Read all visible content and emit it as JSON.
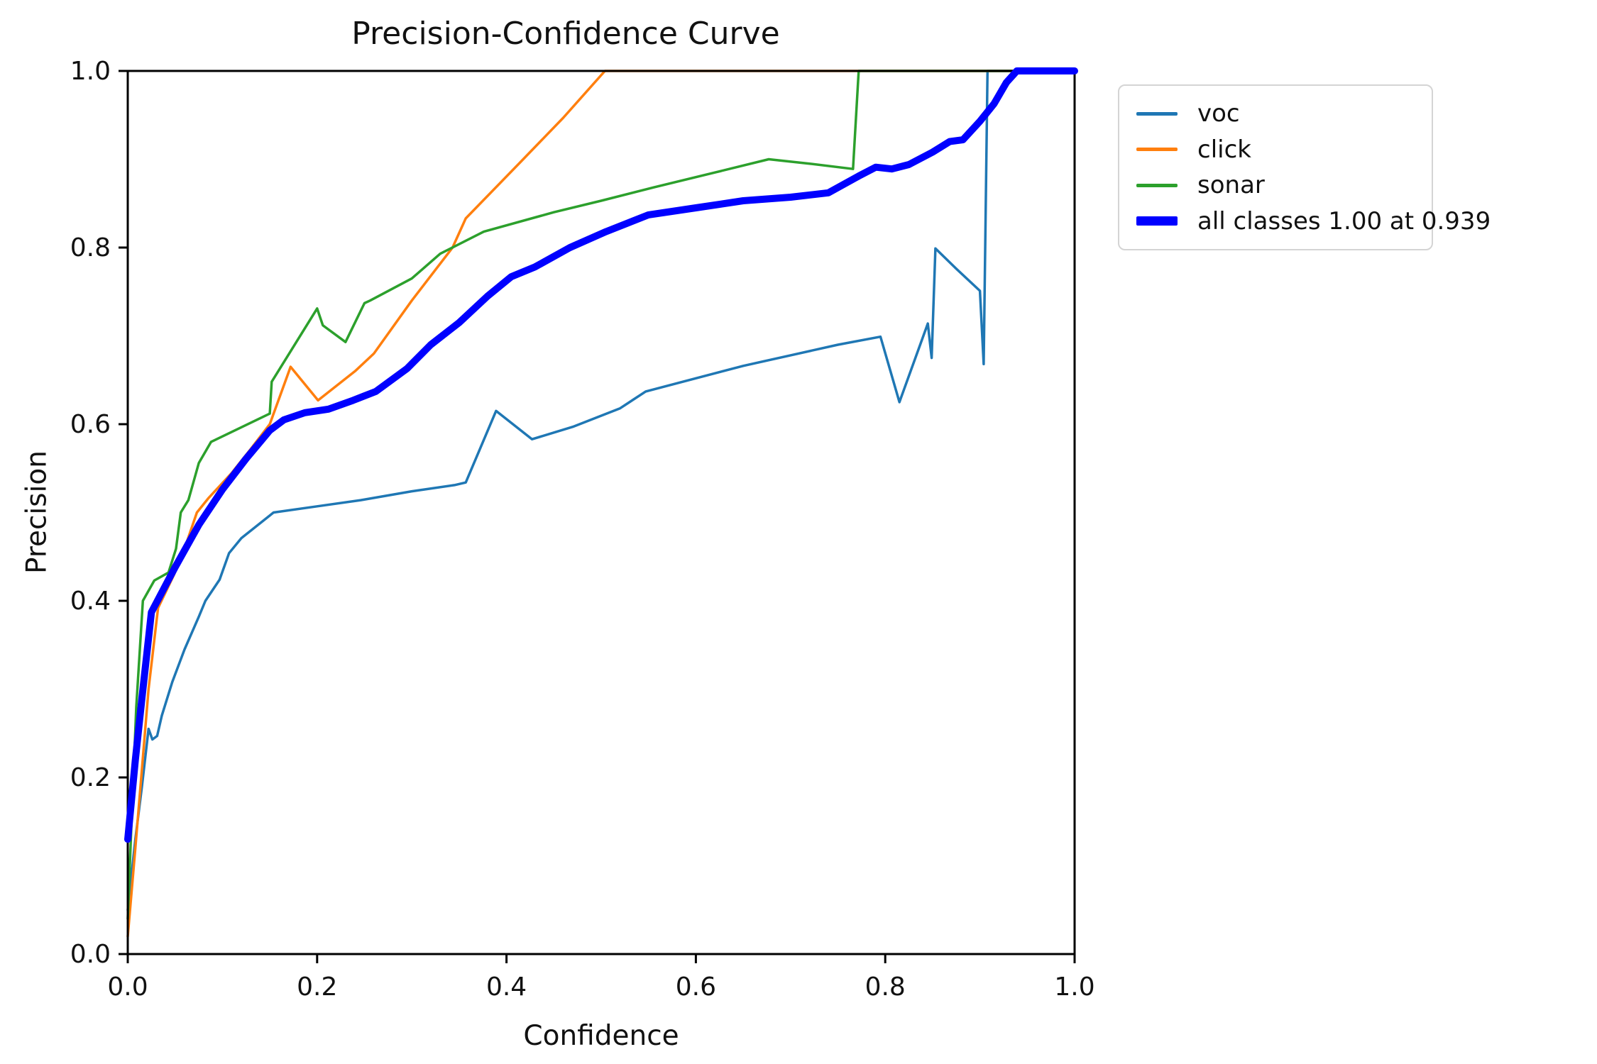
{
  "chart_data": {
    "type": "line",
    "title": "Precision-Confidence Curve",
    "xlabel": "Confidence",
    "ylabel": "Precision",
    "xlim": [
      0.0,
      1.0
    ],
    "ylim": [
      0.0,
      1.0
    ],
    "grid": false,
    "x_ticks": {
      "values": [
        0.0,
        0.2,
        0.4,
        0.6,
        0.8,
        1.0
      ],
      "labels": [
        "0.0",
        "0.2",
        "0.4",
        "0.6",
        "0.8",
        "1.0"
      ]
    },
    "y_ticks": {
      "values": [
        0.0,
        0.2,
        0.4,
        0.6,
        0.8,
        1.0
      ],
      "labels": [
        "0.0",
        "0.2",
        "0.4",
        "0.6",
        "0.8",
        "1.0"
      ]
    },
    "legend": {
      "position": "upper right, outside axes",
      "entries": [
        "voc",
        "click",
        "sonar",
        "all classes 1.00 at 0.939"
      ]
    },
    "series": [
      {
        "name": "voc",
        "color": "#1f77b4",
        "line_width": 3.5,
        "points": [
          [
            0,
            0.05
          ],
          [
            0.008,
            0.13
          ],
          [
            0.015,
            0.19
          ],
          [
            0.022,
            0.255
          ],
          [
            0.026,
            0.243
          ],
          [
            0.031,
            0.247
          ],
          [
            0.036,
            0.27
          ],
          [
            0.047,
            0.308
          ],
          [
            0.06,
            0.345
          ],
          [
            0.075,
            0.382
          ],
          [
            0.082,
            0.4
          ],
          [
            0.097,
            0.424
          ],
          [
            0.107,
            0.454
          ],
          [
            0.12,
            0.471
          ],
          [
            0.154,
            0.5
          ],
          [
            0.2,
            0.507
          ],
          [
            0.246,
            0.514
          ],
          [
            0.3,
            0.524
          ],
          [
            0.345,
            0.531
          ],
          [
            0.357,
            0.534
          ],
          [
            0.389,
            0.615
          ],
          [
            0.427,
            0.583
          ],
          [
            0.47,
            0.597
          ],
          [
            0.52,
            0.618
          ],
          [
            0.547,
            0.637
          ],
          [
            0.6,
            0.652
          ],
          [
            0.65,
            0.666
          ],
          [
            0.7,
            0.678
          ],
          [
            0.75,
            0.69
          ],
          [
            0.795,
            0.699
          ],
          [
            0.815,
            0.625
          ],
          [
            0.845,
            0.714
          ],
          [
            0.849,
            0.675
          ],
          [
            0.853,
            0.799
          ],
          [
            0.875,
            0.776
          ],
          [
            0.9,
            0.751
          ],
          [
            0.904,
            0.668
          ],
          [
            0.908,
            1.0
          ],
          [
            1.0,
            1.0
          ]
        ]
      },
      {
        "name": "click",
        "color": "#ff7f0e",
        "line_width": 3.5,
        "points": [
          [
            0,
            0.02
          ],
          [
            0.008,
            0.12
          ],
          [
            0.015,
            0.21
          ],
          [
            0.022,
            0.3
          ],
          [
            0.032,
            0.392
          ],
          [
            0.049,
            0.43
          ],
          [
            0.06,
            0.459
          ],
          [
            0.073,
            0.5
          ],
          [
            0.085,
            0.516
          ],
          [
            0.11,
            0.545
          ],
          [
            0.13,
            0.572
          ],
          [
            0.15,
            0.6
          ],
          [
            0.172,
            0.665
          ],
          [
            0.201,
            0.627
          ],
          [
            0.24,
            0.66
          ],
          [
            0.26,
            0.68
          ],
          [
            0.3,
            0.74
          ],
          [
            0.343,
            0.8
          ],
          [
            0.357,
            0.833
          ],
          [
            0.414,
            0.896
          ],
          [
            0.46,
            0.947
          ],
          [
            0.504,
            1.0
          ],
          [
            1.0,
            1.0
          ]
        ]
      },
      {
        "name": "sonar",
        "color": "#2ca02c",
        "line_width": 3.5,
        "points": [
          [
            0,
            0.04
          ],
          [
            0.004,
            0.15
          ],
          [
            0.009,
            0.28
          ],
          [
            0.016,
            0.4
          ],
          [
            0.028,
            0.423
          ],
          [
            0.043,
            0.432
          ],
          [
            0.051,
            0.459
          ],
          [
            0.056,
            0.5
          ],
          [
            0.064,
            0.514
          ],
          [
            0.075,
            0.556
          ],
          [
            0.088,
            0.58
          ],
          [
            0.15,
            0.612
          ],
          [
            0.152,
            0.648
          ],
          [
            0.2,
            0.731
          ],
          [
            0.206,
            0.712
          ],
          [
            0.23,
            0.693
          ],
          [
            0.25,
            0.737
          ],
          [
            0.256,
            0.74
          ],
          [
            0.3,
            0.765
          ],
          [
            0.33,
            0.793
          ],
          [
            0.376,
            0.818
          ],
          [
            0.45,
            0.84
          ],
          [
            0.5,
            0.853
          ],
          [
            0.555,
            0.868
          ],
          [
            0.62,
            0.885
          ],
          [
            0.677,
            0.9
          ],
          [
            0.72,
            0.895
          ],
          [
            0.766,
            0.889
          ],
          [
            0.772,
            1.0
          ],
          [
            1.0,
            1.0
          ]
        ]
      },
      {
        "name": "all classes 1.00 at 0.939",
        "color": "#0000ff",
        "line_width": 10,
        "points": [
          [
            0,
            0.13
          ],
          [
            0.008,
            0.22
          ],
          [
            0.015,
            0.29
          ],
          [
            0.025,
            0.387
          ],
          [
            0.05,
            0.438
          ],
          [
            0.075,
            0.486
          ],
          [
            0.1,
            0.526
          ],
          [
            0.125,
            0.561
          ],
          [
            0.15,
            0.593
          ],
          [
            0.165,
            0.605
          ],
          [
            0.187,
            0.613
          ],
          [
            0.212,
            0.617
          ],
          [
            0.238,
            0.627
          ],
          [
            0.262,
            0.637
          ],
          [
            0.295,
            0.663
          ],
          [
            0.32,
            0.69
          ],
          [
            0.35,
            0.715
          ],
          [
            0.38,
            0.745
          ],
          [
            0.405,
            0.767
          ],
          [
            0.43,
            0.778
          ],
          [
            0.467,
            0.8
          ],
          [
            0.505,
            0.818
          ],
          [
            0.55,
            0.837
          ],
          [
            0.6,
            0.845
          ],
          [
            0.65,
            0.853
          ],
          [
            0.7,
            0.857
          ],
          [
            0.74,
            0.862
          ],
          [
            0.772,
            0.881
          ],
          [
            0.79,
            0.891
          ],
          [
            0.807,
            0.889
          ],
          [
            0.825,
            0.894
          ],
          [
            0.85,
            0.908
          ],
          [
            0.868,
            0.92
          ],
          [
            0.882,
            0.922
          ],
          [
            0.9,
            0.943
          ],
          [
            0.915,
            0.963
          ],
          [
            0.928,
            0.987
          ],
          [
            0.939,
            1.0
          ],
          [
            1.0,
            1.0
          ]
        ]
      }
    ]
  }
}
